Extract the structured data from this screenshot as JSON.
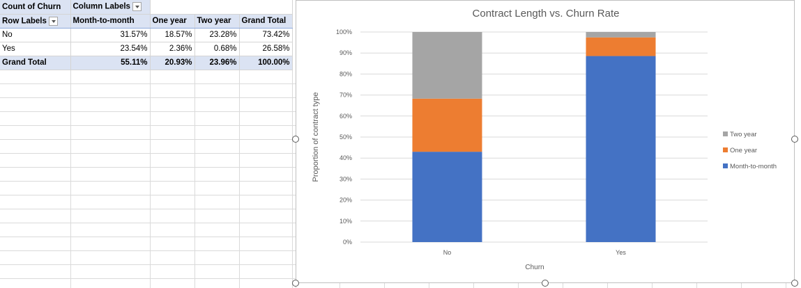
{
  "pivot": {
    "corner_label": "Count of Churn",
    "column_labels_header": "Column Labels",
    "row_labels_header": "Row Labels",
    "columns": [
      "Month-to-month",
      "One year",
      "Two year",
      "Grand Total"
    ],
    "rows": [
      {
        "label": "No",
        "values": [
          "31.57%",
          "18.57%",
          "23.28%",
          "73.42%"
        ]
      },
      {
        "label": "Yes",
        "values": [
          "23.54%",
          "2.36%",
          "0.68%",
          "26.58%"
        ]
      }
    ],
    "total": {
      "label": "Grand Total",
      "values": [
        "55.11%",
        "20.93%",
        "23.96%",
        "100.00%"
      ]
    }
  },
  "chart_data": {
    "type": "bar",
    "stacked": true,
    "percent_stacked": true,
    "title": "Contract Length vs. Churn Rate",
    "xlabel": "Churn",
    "ylabel": "Proportion of contract type",
    "categories": [
      "No",
      "Yes"
    ],
    "yticks": [
      "0%",
      "10%",
      "20%",
      "30%",
      "40%",
      "50%",
      "60%",
      "70%",
      "80%",
      "90%",
      "100%"
    ],
    "ylim": [
      0,
      100
    ],
    "grid": true,
    "legend_position": "right",
    "series": [
      {
        "name": "Month-to-month",
        "values": [
          43.0,
          88.56
        ],
        "color": "#4472c4"
      },
      {
        "name": "One year",
        "values": [
          25.29,
          8.88
        ],
        "color": "#ed7d31"
      },
      {
        "name": "Two year",
        "values": [
          31.71,
          2.56
        ],
        "color": "#a5a5a5"
      }
    ]
  }
}
